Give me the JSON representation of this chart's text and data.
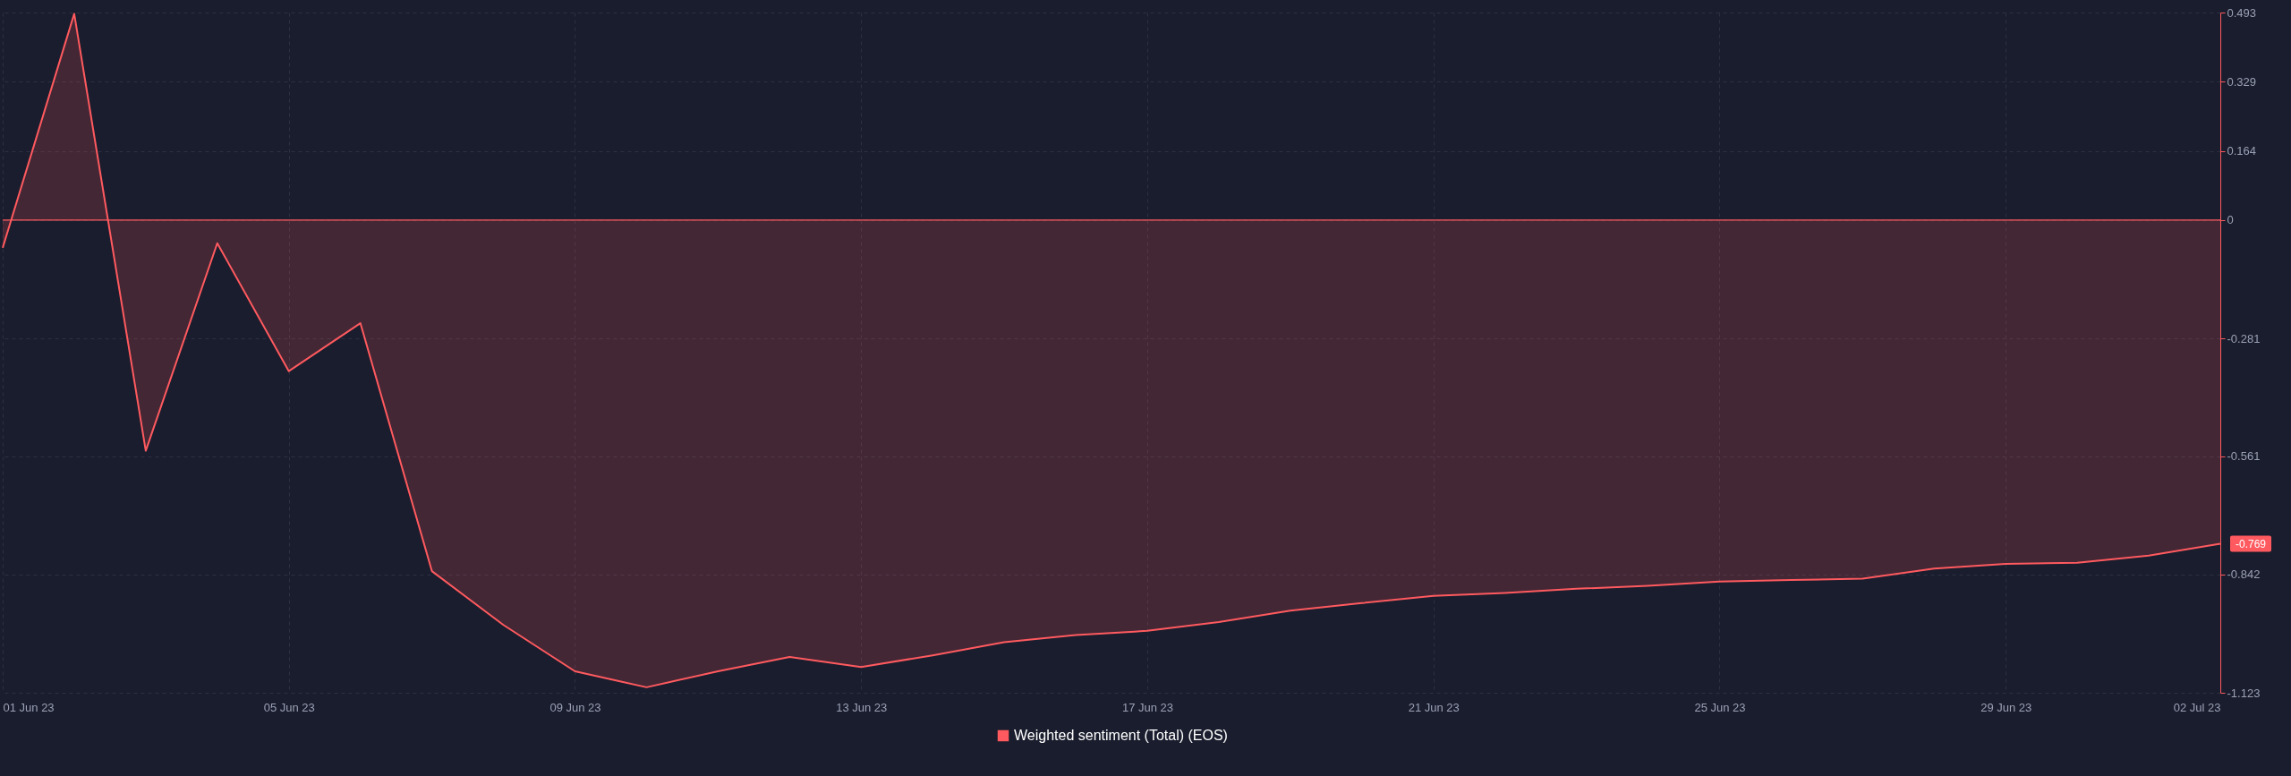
{
  "chart_data": {
    "type": "area",
    "x": [
      "--06-01",
      "--06-02",
      "--06-03",
      "--06-04",
      "--06-05",
      "--06-06",
      "--06-07",
      "--06-08",
      "--06-09",
      "--06-10",
      "--06-11",
      "--06-12",
      "--06-13",
      "--06-14",
      "--06-15",
      "--06-16",
      "--06-17",
      "--06-18",
      "--06-19",
      "--06-20",
      "--06-21",
      "--06-22",
      "--06-23",
      "--06-24",
      "--06-25",
      "--06-26",
      "--06-27",
      "--06-28",
      "--06-29",
      "--06-30",
      "--07-01",
      "--07-02"
    ],
    "series": [
      {
        "name": "Weighted sentiment (Total) (EOS)",
        "color": "#ff5a5f",
        "values": [
          -0.066,
          0.49,
          -0.548,
          -0.055,
          -0.359,
          -0.245,
          -0.834,
          -0.962,
          -1.072,
          -1.11,
          -1.072,
          -1.038,
          -1.062,
          -1.034,
          -1.003,
          -0.986,
          -0.976,
          -0.955,
          -0.928,
          -0.91,
          -0.893,
          -0.886,
          -0.876,
          -0.869,
          -0.859,
          -0.855,
          -0.852,
          -0.828,
          -0.817,
          -0.814,
          -0.797,
          -0.769
        ]
      }
    ],
    "xlim": [
      "--06-01",
      "--07-02"
    ],
    "xticks": [
      {
        "value": "--06-01",
        "label": "01 Jun 23"
      },
      {
        "value": "--06-05",
        "label": "05 Jun 23"
      },
      {
        "value": "--06-09",
        "label": "09 Jun 23"
      },
      {
        "value": "--06-13",
        "label": "13 Jun 23"
      },
      {
        "value": "--06-17",
        "label": "17 Jun 23"
      },
      {
        "value": "--06-21",
        "label": "21 Jun 23"
      },
      {
        "value": "--06-25",
        "label": "25 Jun 23"
      },
      {
        "value": "--06-29",
        "label": "29 Jun 23"
      },
      {
        "value": "--07-02",
        "label": "02 Jul 23"
      }
    ],
    "ylim": [
      -1.123,
      0.493
    ],
    "yticks": [
      0.493,
      0.329,
      0.164,
      0,
      -0.281,
      -0.561,
      -0.842,
      -1.123
    ],
    "ref_lines": [
      {
        "axis": "y",
        "value": 0,
        "color": "#ff5a5f"
      }
    ],
    "annotations": [
      {
        "text": "-0.769",
        "x": "--07-02",
        "y": -0.769
      }
    ],
    "grid": true,
    "legend": "bottom"
  }
}
